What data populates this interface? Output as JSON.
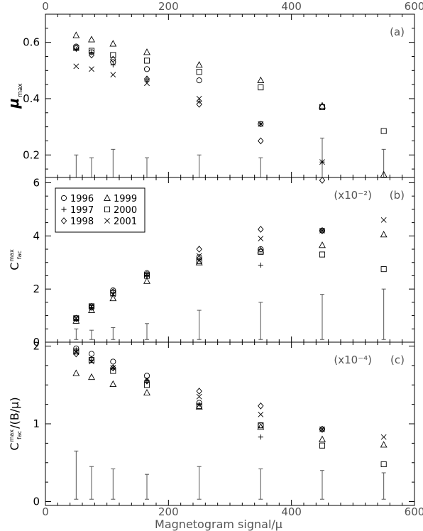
{
  "chart_data": {
    "type": "scatter",
    "xlabel": "Magnetogram signal/μ",
    "xlim": [
      0,
      600
    ],
    "x_ticks": [
      0,
      200,
      400,
      600
    ],
    "x": [
      50,
      75,
      110,
      165,
      250,
      350,
      450,
      550
    ],
    "legend": {
      "placement": "top-left of panel (b)",
      "entries": [
        {
          "year": "1996",
          "marker": "circle"
        },
        {
          "year": "1997",
          "marker": "plus"
        },
        {
          "year": "1998",
          "marker": "diamond"
        },
        {
          "year": "1999",
          "marker": "triangle"
        },
        {
          "year": "2000",
          "marker": "square"
        },
        {
          "year": "2001",
          "marker": "cross"
        }
      ]
    },
    "panels": [
      {
        "id": "a",
        "panel_label": "(a)",
        "scale_label": "",
        "ylabel_main": "μ",
        "ylabel_sub": "max",
        "ylim": [
          0.12,
          0.7
        ],
        "y_ticks": [
          0.2,
          0.4,
          0.6
        ],
        "y_tick_labels": [
          "0.2",
          "0.4",
          "0.6"
        ],
        "errorbars": [
          [
            0.12,
            0.2
          ],
          [
            0.12,
            0.19
          ],
          [
            0.12,
            0.22
          ],
          [
            0.12,
            0.19
          ],
          [
            0.12,
            0.2
          ],
          [
            0.12,
            0.19
          ],
          [
            0.12,
            0.26
          ],
          [
            0.12,
            0.22
          ]
        ],
        "series": [
          {
            "year": "1996",
            "values": [
              0.585,
              0.565,
              0.53,
              0.505,
              0.465,
              0.31,
              0.37,
              null
            ]
          },
          {
            "year": "1997",
            "values": [
              0.575,
              0.565,
              0.52,
              0.47,
              0.39,
              0.31,
              0.175,
              null
            ]
          },
          {
            "year": "1998",
            "values": [
              0.58,
              0.555,
              0.54,
              0.47,
              0.38,
              0.25,
              0.11,
              null
            ]
          },
          {
            "year": "1999",
            "values": [
              0.625,
              0.61,
              0.595,
              0.565,
              0.52,
              0.465,
              0.375,
              0.13
            ]
          },
          {
            "year": "2000",
            "values": [
              0.58,
              0.57,
              0.555,
              0.535,
              0.495,
              0.44,
              0.37,
              0.285
            ]
          },
          {
            "year": "2001",
            "values": [
              0.515,
              0.505,
              0.485,
              0.455,
              0.4,
              0.31,
              0.175,
              null
            ]
          }
        ]
      },
      {
        "id": "b",
        "panel_label": "(b)",
        "scale_label": "(x10⁻²)",
        "ylabel_main": "C",
        "ylabel_sub": "fac",
        "ylabel_sup": "max",
        "ylim": [
          0,
          6.2
        ],
        "y_ticks": [
          0,
          2,
          4,
          6
        ],
        "y_tick_labels": [
          "0",
          "2",
          "4",
          "6"
        ],
        "errorbars": [
          [
            0.1,
            0.5
          ],
          [
            0.1,
            0.45
          ],
          [
            0.1,
            0.55
          ],
          [
            0.1,
            0.7
          ],
          [
            0.1,
            1.2
          ],
          [
            0.1,
            1.5
          ],
          [
            0.1,
            1.8
          ],
          [
            0.1,
            2.0
          ]
        ],
        "series": [
          {
            "year": "1996",
            "values": [
              0.9,
              1.3,
              1.95,
              2.6,
              3.2,
              3.5,
              4.2,
              null
            ]
          },
          {
            "year": "1997",
            "values": [
              0.85,
              1.3,
              1.85,
              2.5,
              3.1,
              2.9,
              4.2,
              null
            ]
          },
          {
            "year": "1998",
            "values": [
              0.9,
              1.35,
              1.9,
              2.55,
              3.5,
              4.25,
              4.2,
              null
            ]
          },
          {
            "year": "1999",
            "values": [
              0.8,
              1.2,
              1.65,
              2.3,
              3.0,
              3.45,
              3.65,
              4.05
            ]
          },
          {
            "year": "2000",
            "values": [
              0.9,
              1.35,
              1.85,
              2.5,
              3.05,
              3.4,
              3.3,
              2.75
            ]
          },
          {
            "year": "2001",
            "values": [
              0.9,
              1.35,
              1.8,
              2.55,
              3.25,
              3.9,
              4.2,
              4.6
            ]
          }
        ]
      },
      {
        "id": "c",
        "panel_label": "(c)",
        "scale_label": "(x10⁻⁴)",
        "ylabel_main": "C",
        "ylabel_sub": "fac",
        "ylabel_sup": "max",
        "ylabel_tail": "/(B/μ)",
        "ylim": [
          -0.05,
          2.05
        ],
        "y_ticks": [
          0,
          1,
          2
        ],
        "y_tick_labels": [
          "0",
          "1",
          "2"
        ],
        "errorbars": [
          [
            0.03,
            0.65
          ],
          [
            0.03,
            0.45
          ],
          [
            0.03,
            0.42
          ],
          [
            0.03,
            0.35
          ],
          [
            0.03,
            0.45
          ],
          [
            0.03,
            0.42
          ],
          [
            0.03,
            0.4
          ],
          [
            0.03,
            0.37
          ]
        ],
        "series": [
          {
            "year": "1996",
            "values": [
              1.97,
              1.9,
              1.8,
              1.62,
              1.27,
              0.98,
              0.93,
              null
            ]
          },
          {
            "year": "1997",
            "values": [
              1.95,
              1.82,
              1.72,
              1.55,
              1.25,
              0.83,
              0.92,
              null
            ]
          },
          {
            "year": "1998",
            "values": [
              1.9,
              1.83,
              1.72,
              1.55,
              1.42,
              1.23,
              0.93,
              null
            ]
          },
          {
            "year": "1999",
            "values": [
              1.65,
              1.6,
              1.51,
              1.4,
              1.22,
              0.96,
              0.8,
              0.73
            ]
          },
          {
            "year": "2000",
            "values": [
              1.93,
              1.82,
              1.68,
              1.5,
              1.23,
              0.98,
              0.72,
              0.48
            ]
          },
          {
            "year": "2001",
            "values": [
              1.92,
              1.8,
              1.72,
              1.57,
              1.35,
              1.12,
              0.93,
              0.83
            ]
          }
        ]
      }
    ]
  }
}
